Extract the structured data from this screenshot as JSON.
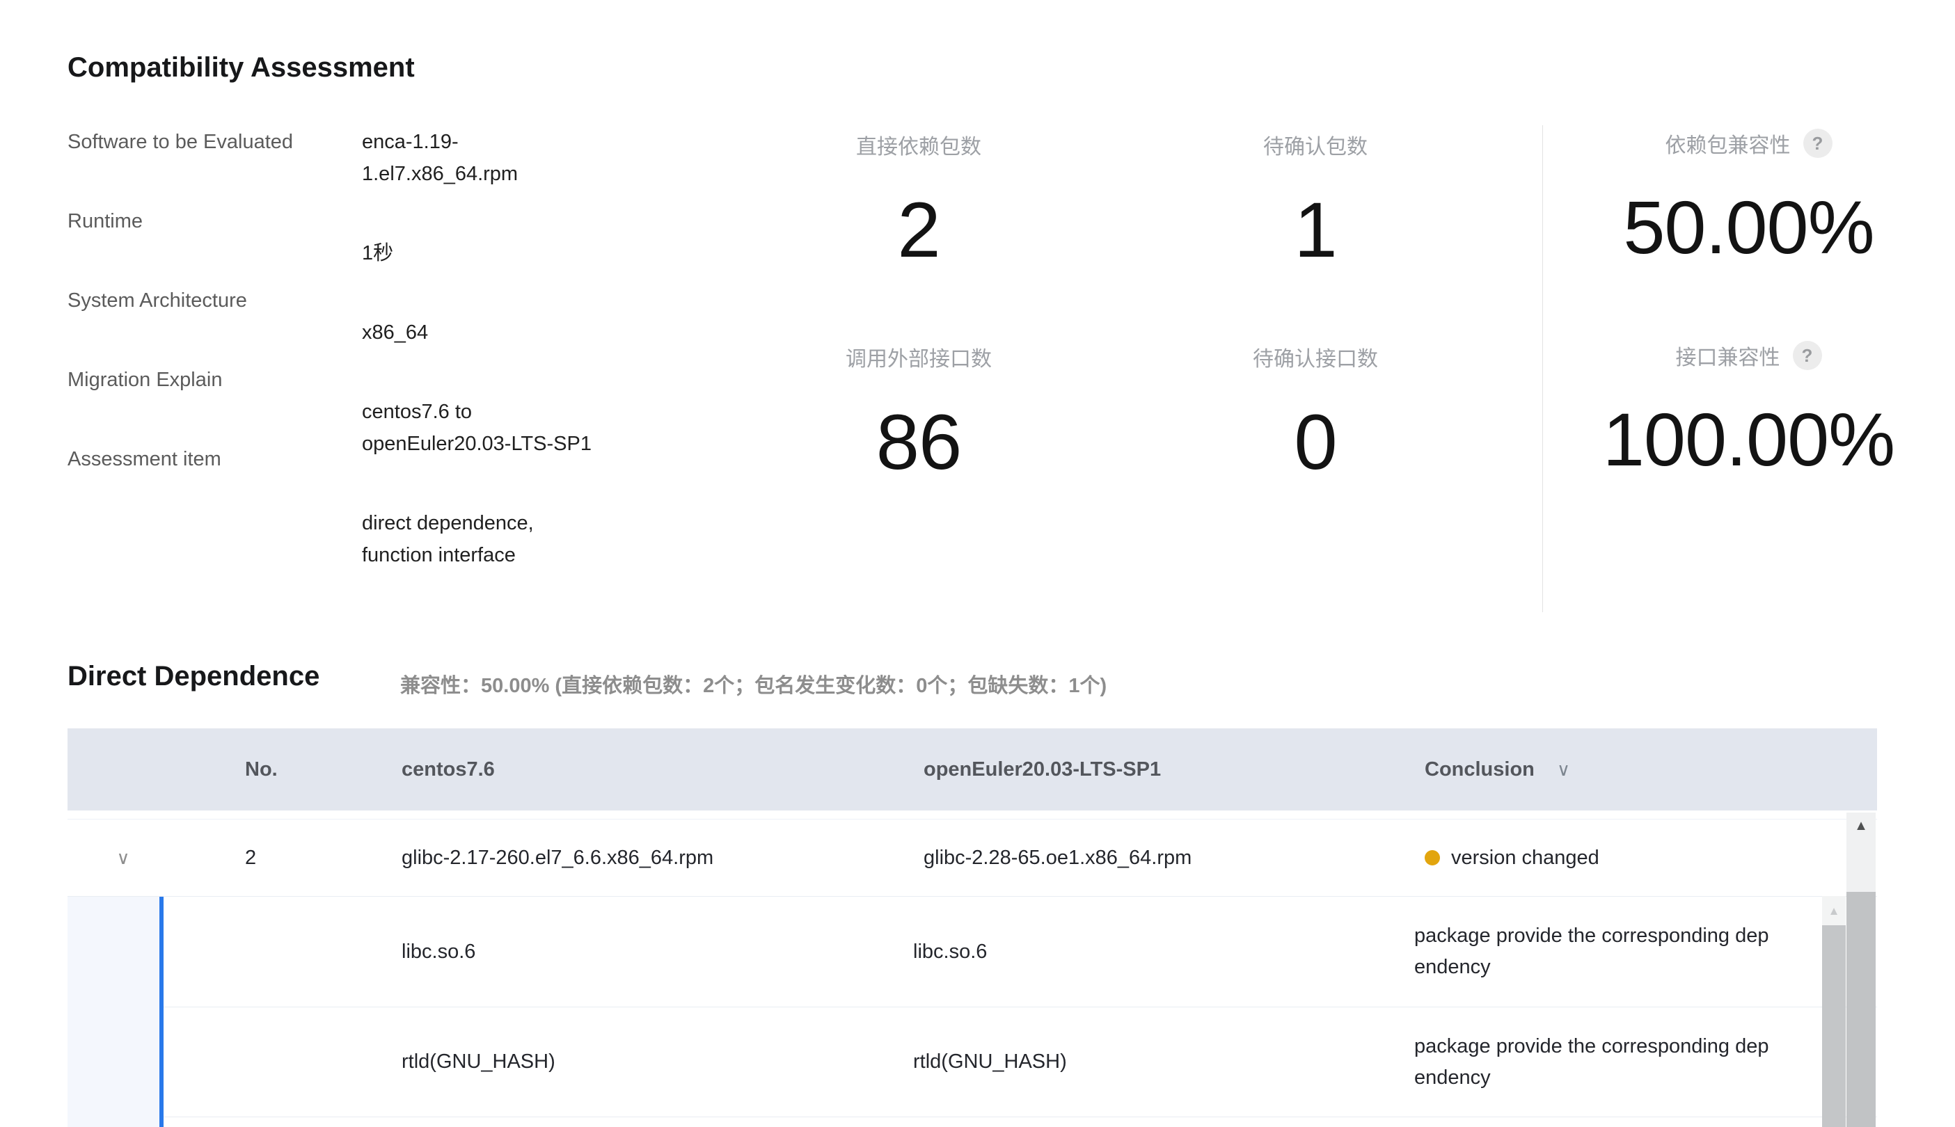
{
  "assessment": {
    "title": "Compatibility Assessment",
    "info": [
      {
        "label": "Software to be Evaluated",
        "lines": [
          "enca-1.19-",
          "1.el7.x86_64.rpm"
        ]
      },
      {
        "label": "Runtime",
        "lines": [
          "1秒"
        ]
      },
      {
        "label": "System Architecture",
        "lines": [
          "x86_64"
        ]
      },
      {
        "label": "Migration Explain",
        "lines": [
          "centos7.6 to",
          "openEuler20.03-LTS-SP1"
        ]
      },
      {
        "label": "Assessment item",
        "lines": [
          "direct dependence,",
          "function interface"
        ]
      }
    ],
    "stats": [
      {
        "label": "直接依赖包数",
        "value": "2"
      },
      {
        "label": "待确认包数",
        "value": "1"
      },
      {
        "label": "依赖包兼容性",
        "value": "50.00%",
        "has_help": true
      },
      {
        "label": "调用外部接口数",
        "value": "86"
      },
      {
        "label": "待确认接口数",
        "value": "0"
      },
      {
        "label": "接口兼容性",
        "value": "100.00%",
        "has_help": true
      }
    ]
  },
  "direct_dependence": {
    "title": "Direct Dependence",
    "summary": "兼容性：50.00% (直接依赖包数：2个；包名发生变化数：0个；包缺失数：1个)",
    "table": {
      "columns": [
        "No.",
        "centos7.6",
        "openEuler20.03-LTS-SP1",
        "Conclusion"
      ],
      "rows": [
        {
          "no": "2",
          "centos": "glibc-2.17-260.el7_6.6.x86_64.rpm",
          "open_euler": "glibc-2.28-65.oe1.x86_64.rpm",
          "conclusion": "version changed",
          "children": [
            {
              "centos": "libc.so.6",
              "open_euler": "libc.so.6",
              "conclusion": "package provide the corresponding dependency"
            },
            {
              "centos": "rtld(GNU_HASH)",
              "open_euler": "rtld(GNU_HASH)",
              "conclusion": "package provide the corresponding dependency"
            }
          ]
        }
      ]
    }
  },
  "icons": {
    "expand_chevron": "∨",
    "filter_chevron": "∨",
    "help": "?",
    "scroll_up": "▲"
  },
  "colors": {
    "accent_blue": "#2979ea",
    "version_changed_dot": "#e2a50e",
    "header_bg": "#e2e6ee"
  }
}
